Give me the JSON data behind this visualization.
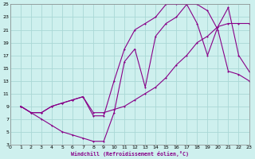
{
  "xlabel": "Windchill (Refroidissement éolien,°C)",
  "bg_color": "#cef0ee",
  "grid_color": "#aad8d5",
  "line_color": "#880088",
  "xlim": [
    0,
    23
  ],
  "ylim": [
    3,
    25
  ],
  "xticks": [
    0,
    1,
    2,
    3,
    4,
    5,
    6,
    7,
    8,
    9,
    10,
    11,
    12,
    13,
    14,
    15,
    16,
    17,
    18,
    19,
    20,
    21,
    22,
    23
  ],
  "yticks": [
    3,
    5,
    7,
    9,
    11,
    13,
    15,
    17,
    19,
    21,
    23,
    25
  ],
  "line1_x": [
    1,
    2,
    3,
    4,
    5,
    6,
    7,
    8,
    9,
    10,
    11,
    12,
    13,
    14,
    15,
    16,
    17,
    18,
    19,
    20,
    21,
    22,
    23
  ],
  "line1_y": [
    9,
    8,
    7,
    6,
    5,
    4.5,
    4,
    3.5,
    3.5,
    8,
    16,
    18,
    12,
    20,
    22,
    23,
    25,
    25,
    24,
    21,
    14.5,
    14,
    13
  ],
  "line2_x": [
    1,
    2,
    3,
    4,
    5,
    6,
    7,
    8,
    9,
    10,
    11,
    12,
    13,
    14,
    15,
    16,
    17,
    18,
    19,
    20,
    21,
    22,
    23
  ],
  "line2_y": [
    9,
    8,
    8,
    9,
    9.5,
    10,
    10.5,
    8,
    8,
    8.5,
    9,
    10,
    11,
    12,
    13.5,
    15.5,
    17,
    19,
    20,
    21.5,
    22,
    22,
    22
  ],
  "line3_x": [
    1,
    2,
    3,
    4,
    5,
    6,
    7,
    8,
    9,
    10,
    11,
    12,
    13,
    14,
    15,
    16,
    17,
    18,
    19,
    20,
    21,
    22,
    23
  ],
  "line3_y": [
    9,
    8,
    8,
    9,
    9.5,
    10,
    10.5,
    7.5,
    7.5,
    13,
    18,
    21,
    22,
    23,
    25,
    25,
    25,
    22,
    17,
    21.5,
    24.5,
    17,
    14.5
  ]
}
